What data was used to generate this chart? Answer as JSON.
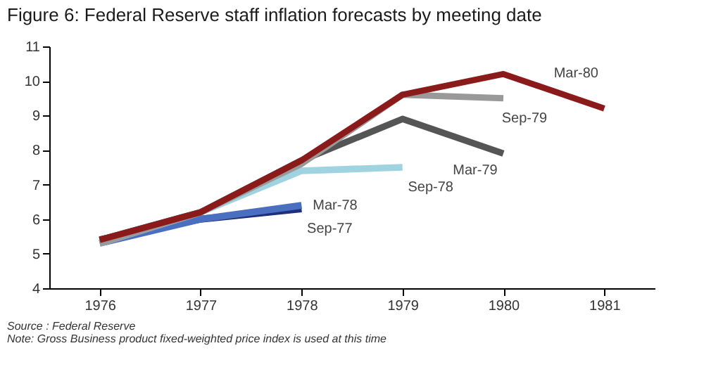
{
  "chart_data": {
    "type": "line",
    "title": "Figure 6: Federal Reserve staff inflation forecasts by meeting date",
    "categories": [
      "1976",
      "1977",
      "1978",
      "1979",
      "1980",
      "1981"
    ],
    "ylim": [
      4,
      11
    ],
    "yticks": [
      4,
      5,
      6,
      7,
      8,
      9,
      10,
      11
    ],
    "grid": false,
    "legend": false,
    "marker": "none",
    "line_style": "solid",
    "series": [
      {
        "name": "Sep-77",
        "color": "#1f2f7a",
        "values": [
          5.4,
          6.0,
          6.3,
          null,
          null,
          null
        ]
      },
      {
        "name": "Mar-78",
        "color": "#4a6fc0",
        "values": [
          5.3,
          6.0,
          6.4,
          null,
          null,
          null
        ]
      },
      {
        "name": "Sep-78",
        "color": "#9fd3e0",
        "values": [
          5.3,
          6.2,
          7.4,
          7.5,
          null,
          null
        ]
      },
      {
        "name": "Mar-79",
        "color": "#555555",
        "values": [
          5.4,
          6.2,
          7.7,
          8.9,
          7.9,
          null
        ]
      },
      {
        "name": "Sep-79",
        "color": "#999999",
        "values": [
          5.3,
          6.2,
          7.6,
          9.6,
          9.5,
          null
        ]
      },
      {
        "name": "Mar-80",
        "color": "#8b1a1a",
        "values": [
          5.4,
          6.2,
          7.7,
          9.6,
          10.2,
          9.2
        ]
      }
    ],
    "annotations": [
      "Source : Federal Reserve",
      "Note: Gross Business product fixed-weighted price index is used at this time"
    ]
  }
}
